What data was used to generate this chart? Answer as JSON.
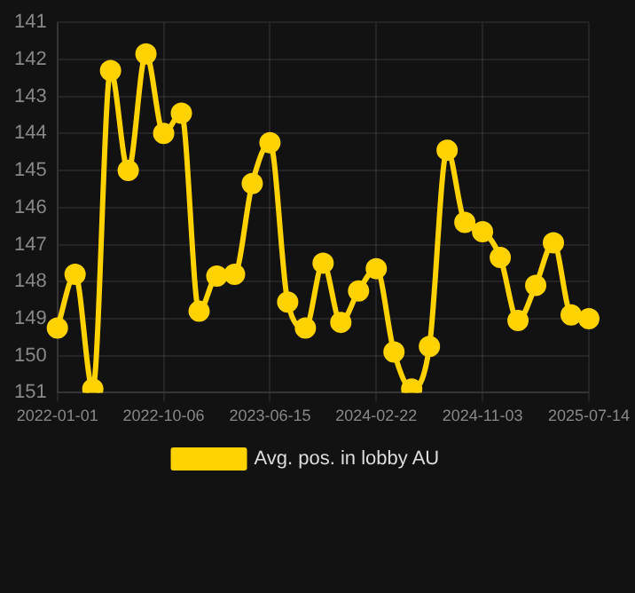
{
  "chart_data": {
    "type": "line",
    "categories": [
      "2022-01-01",
      null,
      null,
      null,
      null,
      null,
      "2022-10-06",
      null,
      null,
      null,
      null,
      null,
      "2023-06-15",
      null,
      null,
      null,
      null,
      null,
      "2024-02-22",
      null,
      null,
      null,
      null,
      null,
      "2024-11-03",
      null,
      null,
      null,
      null,
      null,
      "2025-07-14"
    ],
    "series": [
      {
        "name": "Avg. pos. in lobby AU",
        "color": "#ffd200",
        "values": [
          149.25,
          147.8,
          150.9,
          142.3,
          145.0,
          141.85,
          144.0,
          143.45,
          148.8,
          147.85,
          147.8,
          145.35,
          144.25,
          148.55,
          149.25,
          147.5,
          149.1,
          148.25,
          147.65,
          149.9,
          150.9,
          149.75,
          144.45,
          146.4,
          146.65,
          147.35,
          149.05,
          148.1,
          146.95,
          148.9,
          149.0
        ]
      }
    ],
    "ylim": [
      151,
      141
    ],
    "yticks": [
      141,
      142,
      143,
      144,
      145,
      146,
      147,
      148,
      149,
      150,
      151
    ],
    "grid": true,
    "legend": "bottom",
    "marker": "circle",
    "line_style": "solid"
  }
}
